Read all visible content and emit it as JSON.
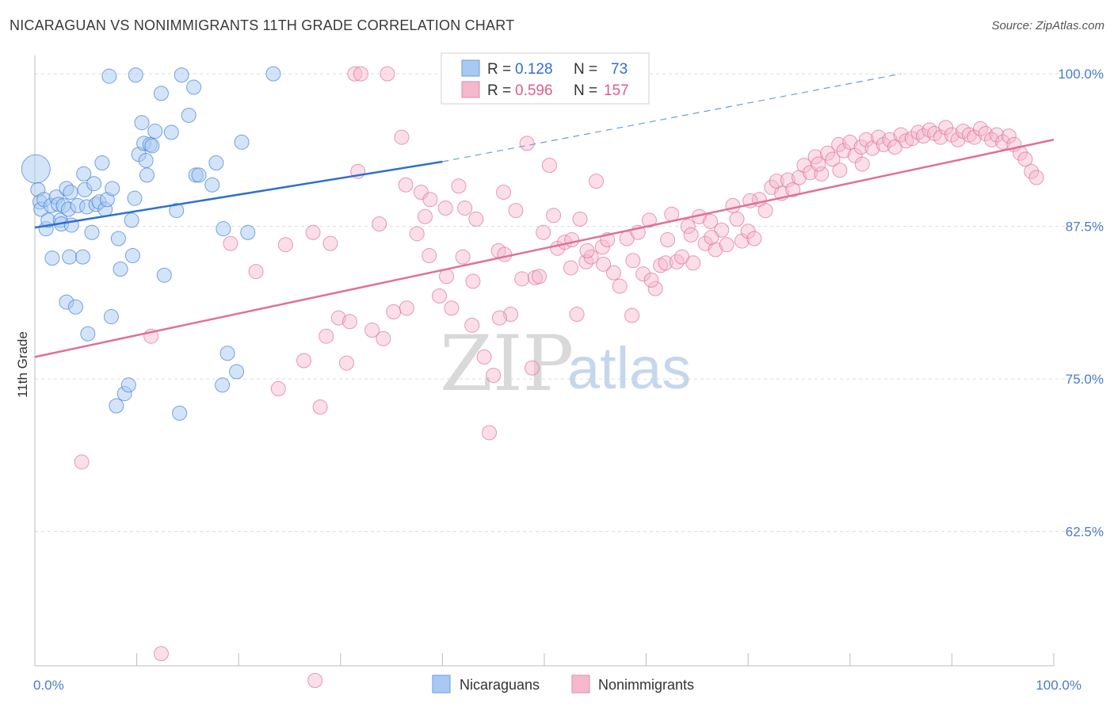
{
  "title": "NICARAGUAN VS NONIMMIGRANTS 11TH GRADE CORRELATION CHART",
  "source": "Source: ZipAtlas.com",
  "colors": {
    "blue": "#4a86d8",
    "blue_fill": "#a9c9f2",
    "pink": "#e0709a",
    "pink_fill": "#f5b8cc",
    "grid": "#dcdcdc"
  },
  "legend": {
    "rows": [
      {
        "r_label": "R =",
        "r_value": "0.128",
        "n_label": "N =",
        "n_value": "73"
      },
      {
        "r_label": "R =",
        "r_value": "0.596",
        "n_label": "N =",
        "n_value": "157"
      }
    ]
  },
  "bottom_legend": [
    "Nicaraguans",
    "Nonimmigrants"
  ],
  "watermark": {
    "zip": "ZIP",
    "atlas": "atlas"
  },
  "chart_data": {
    "type": "scatter",
    "xlabel": "",
    "ylabel": "11th Grade",
    "x_ticks": [
      "0.0%",
      "100.0%"
    ],
    "y_ticks": [
      "100.0%",
      "87.5%",
      "75.0%",
      "62.5%"
    ],
    "xlim": [
      0,
      100
    ],
    "ylim": [
      51.5,
      101.5
    ],
    "grid": true,
    "legend_placement": "top-center",
    "series": [
      {
        "name": "Nicaraguans",
        "trend": {
          "x0": 0.0,
          "y0": 87.4,
          "x1": 40.0,
          "y1": 92.8,
          "dash_to_x": 85.0,
          "dash_to_y": 100.0
        },
        "points": [
          [
            0.1,
            92.2
          ],
          [
            0.3,
            90.5
          ],
          [
            0.5,
            89.5
          ],
          [
            0.6,
            88.9
          ],
          [
            0.9,
            89.7
          ],
          [
            1.1,
            87.3
          ],
          [
            1.3,
            88.0
          ],
          [
            1.6,
            89.2
          ],
          [
            1.7,
            84.9
          ],
          [
            2.1,
            89.9
          ],
          [
            2.3,
            89.3
          ],
          [
            2.5,
            88.0
          ],
          [
            2.6,
            87.7
          ],
          [
            2.8,
            89.2
          ],
          [
            3.1,
            90.6
          ],
          [
            3.3,
            88.9
          ],
          [
            3.5,
            90.3
          ],
          [
            3.6,
            87.6
          ],
          [
            3.1,
            81.3
          ],
          [
            3.4,
            85.0
          ],
          [
            4.0,
            80.9
          ],
          [
            4.2,
            89.2
          ],
          [
            4.7,
            85.0
          ],
          [
            4.8,
            91.8
          ],
          [
            4.9,
            90.5
          ],
          [
            5.1,
            89.1
          ],
          [
            5.2,
            78.7
          ],
          [
            5.6,
            87.0
          ],
          [
            5.8,
            91.0
          ],
          [
            6.0,
            89.3
          ],
          [
            6.3,
            89.5
          ],
          [
            6.6,
            92.7
          ],
          [
            6.9,
            88.9
          ],
          [
            7.1,
            89.7
          ],
          [
            7.3,
            99.8
          ],
          [
            7.5,
            80.1
          ],
          [
            7.6,
            90.6
          ],
          [
            8.2,
            86.5
          ],
          [
            8.0,
            72.8
          ],
          [
            8.4,
            84.0
          ],
          [
            8.8,
            73.8
          ],
          [
            9.2,
            74.5
          ],
          [
            9.5,
            88.0
          ],
          [
            9.9,
            99.9
          ],
          [
            9.6,
            85.1
          ],
          [
            9.8,
            89.8
          ],
          [
            10.2,
            93.4
          ],
          [
            10.5,
            96.0
          ],
          [
            10.7,
            94.3
          ],
          [
            10.9,
            92.9
          ],
          [
            11.0,
            91.7
          ],
          [
            11.3,
            94.2
          ],
          [
            11.8,
            95.3
          ],
          [
            12.4,
            98.4
          ],
          [
            12.7,
            83.5
          ],
          [
            13.4,
            95.2
          ],
          [
            13.9,
            88.8
          ],
          [
            14.4,
            99.9
          ],
          [
            15.1,
            96.6
          ],
          [
            14.2,
            72.2
          ],
          [
            15.6,
            98.9
          ],
          [
            15.8,
            91.7
          ],
          [
            16.1,
            91.7
          ],
          [
            11.5,
            94.1
          ],
          [
            17.4,
            90.9
          ],
          [
            17.8,
            92.7
          ],
          [
            18.4,
            74.5
          ],
          [
            18.5,
            87.3
          ],
          [
            18.9,
            77.1
          ],
          [
            19.8,
            75.6
          ],
          [
            20.3,
            94.4
          ],
          [
            20.9,
            87.0
          ],
          [
            23.4,
            100.0
          ]
        ]
      },
      {
        "name": "Nonimmigrants",
        "trend": {
          "x0": 0.0,
          "y0": 76.8,
          "x1": 100.0,
          "y1": 94.6
        },
        "points": [
          [
            4.6,
            68.2
          ],
          [
            11.4,
            78.5
          ],
          [
            12.4,
            52.5
          ],
          [
            19.2,
            86.1
          ],
          [
            21.7,
            83.8
          ],
          [
            23.9,
            74.2
          ],
          [
            24.6,
            86.0
          ],
          [
            26.4,
            76.5
          ],
          [
            27.5,
            50.3
          ],
          [
            28.0,
            72.7
          ],
          [
            28.6,
            78.5
          ],
          [
            29.0,
            86.1
          ],
          [
            29.8,
            80.0
          ],
          [
            30.9,
            79.7
          ],
          [
            31.7,
            92.0
          ],
          [
            33.8,
            87.7
          ],
          [
            34.2,
            78.3
          ],
          [
            35.2,
            80.5
          ],
          [
            36.0,
            94.8
          ],
          [
            36.4,
            90.9
          ],
          [
            37.5,
            86.9
          ],
          [
            37.9,
            90.3
          ],
          [
            38.3,
            88.3
          ],
          [
            38.7,
            85.1
          ],
          [
            39.7,
            81.8
          ],
          [
            40.4,
            83.4
          ],
          [
            40.9,
            80.8
          ],
          [
            41.6,
            90.8
          ],
          [
            42.0,
            85.0
          ],
          [
            42.2,
            89.0
          ],
          [
            42.9,
            79.4
          ],
          [
            43.3,
            88.1
          ],
          [
            44.1,
            76.8
          ],
          [
            44.6,
            70.6
          ],
          [
            45.0,
            75.3
          ],
          [
            45.5,
            85.5
          ],
          [
            46.0,
            90.3
          ],
          [
            46.7,
            80.3
          ],
          [
            47.2,
            88.8
          ],
          [
            47.8,
            83.2
          ],
          [
            48.3,
            94.3
          ],
          [
            48.8,
            75.9
          ],
          [
            49.1,
            83.3
          ],
          [
            49.9,
            87.0
          ],
          [
            50.5,
            92.5
          ],
          [
            50.9,
            88.4
          ],
          [
            51.3,
            85.7
          ],
          [
            52.0,
            86.2
          ],
          [
            52.6,
            84.1
          ],
          [
            53.2,
            80.3
          ],
          [
            53.5,
            88.1
          ],
          [
            54.1,
            84.6
          ],
          [
            54.6,
            85.0
          ],
          [
            55.1,
            91.2
          ],
          [
            55.7,
            85.8
          ],
          [
            56.2,
            86.4
          ],
          [
            56.8,
            83.7
          ],
          [
            57.4,
            82.6
          ],
          [
            58.1,
            86.5
          ],
          [
            58.6,
            80.2
          ],
          [
            59.2,
            87.0
          ],
          [
            59.7,
            83.6
          ],
          [
            60.3,
            88.0
          ],
          [
            60.9,
            82.4
          ],
          [
            61.4,
            84.3
          ],
          [
            61.9,
            84.5
          ],
          [
            62.5,
            88.5
          ],
          [
            63.0,
            84.6
          ],
          [
            63.5,
            85.0
          ],
          [
            64.1,
            87.5
          ],
          [
            64.6,
            84.5
          ],
          [
            65.2,
            88.3
          ],
          [
            65.8,
            86.1
          ],
          [
            66.3,
            87.9
          ],
          [
            66.8,
            85.6
          ],
          [
            67.4,
            87.2
          ],
          [
            67.9,
            86.0
          ],
          [
            68.5,
            89.2
          ],
          [
            68.9,
            88.1
          ],
          [
            69.4,
            86.3
          ],
          [
            70.0,
            87.1
          ],
          [
            70.6,
            86.5
          ],
          [
            71.1,
            89.7
          ],
          [
            71.7,
            88.8
          ],
          [
            72.3,
            90.7
          ],
          [
            72.8,
            91.2
          ],
          [
            73.3,
            90.2
          ],
          [
            73.9,
            91.3
          ],
          [
            74.4,
            90.5
          ],
          [
            75.0,
            91.5
          ],
          [
            75.5,
            92.5
          ],
          [
            76.1,
            91.9
          ],
          [
            76.6,
            93.2
          ],
          [
            77.2,
            91.8
          ],
          [
            77.8,
            93.5
          ],
          [
            78.3,
            93.0
          ],
          [
            78.9,
            94.2
          ],
          [
            79.4,
            93.7
          ],
          [
            80.0,
            94.4
          ],
          [
            80.5,
            93.3
          ],
          [
            81.1,
            94.0
          ],
          [
            81.6,
            94.6
          ],
          [
            82.2,
            93.9
          ],
          [
            82.8,
            94.8
          ],
          [
            83.3,
            94.2
          ],
          [
            83.9,
            94.6
          ],
          [
            84.4,
            94.0
          ],
          [
            85.0,
            95.0
          ],
          [
            85.5,
            94.5
          ],
          [
            86.1,
            94.7
          ],
          [
            86.7,
            95.2
          ],
          [
            87.2,
            94.9
          ],
          [
            87.8,
            95.4
          ],
          [
            88.3,
            95.1
          ],
          [
            88.9,
            94.8
          ],
          [
            89.4,
            95.6
          ],
          [
            90.0,
            95.0
          ],
          [
            90.6,
            94.6
          ],
          [
            91.1,
            95.3
          ],
          [
            91.7,
            95.0
          ],
          [
            92.2,
            94.8
          ],
          [
            92.8,
            95.5
          ],
          [
            93.3,
            95.1
          ],
          [
            93.9,
            94.6
          ],
          [
            94.4,
            95.0
          ],
          [
            95.0,
            94.4
          ],
          [
            95.6,
            94.9
          ],
          [
            96.1,
            94.2
          ],
          [
            96.7,
            93.5
          ],
          [
            97.2,
            93.0
          ],
          [
            97.8,
            92.0
          ],
          [
            98.3,
            91.5
          ],
          [
            76.9,
            92.6
          ],
          [
            79.0,
            92.1
          ],
          [
            81.2,
            92.6
          ],
          [
            70.2,
            89.6
          ],
          [
            66.4,
            86.6
          ],
          [
            62.1,
            86.4
          ],
          [
            58.7,
            84.7
          ],
          [
            55.8,
            84.4
          ],
          [
            52.7,
            86.4
          ],
          [
            49.5,
            83.4
          ],
          [
            46.1,
            85.2
          ],
          [
            43.0,
            83.0
          ],
          [
            40.3,
            89.0
          ],
          [
            38.8,
            89.7
          ],
          [
            36.5,
            80.8
          ],
          [
            33.1,
            79.0
          ],
          [
            30.6,
            76.3
          ],
          [
            27.3,
            87.0
          ],
          [
            31.4,
            100.0
          ],
          [
            32.0,
            100.0
          ],
          [
            34.6,
            100.0
          ],
          [
            54.2,
            85.5
          ],
          [
            45.6,
            80.0
          ],
          [
            60.5,
            83.1
          ],
          [
            64.4,
            86.8
          ]
        ]
      }
    ]
  }
}
